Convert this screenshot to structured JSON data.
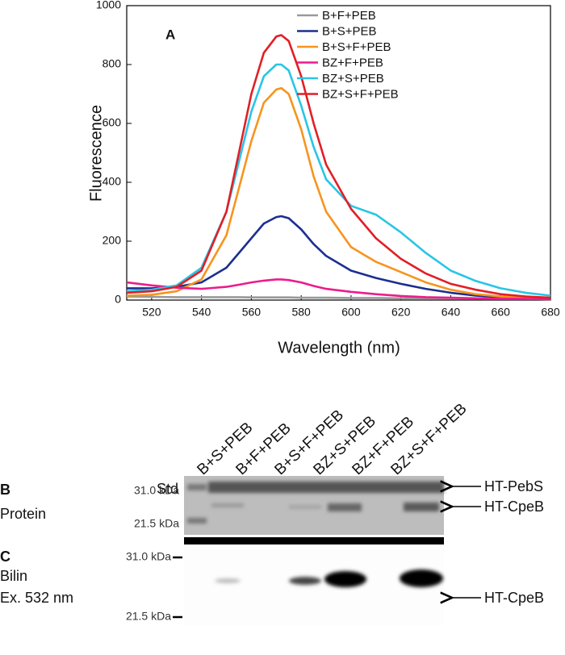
{
  "chart_data": {
    "type": "line",
    "xlabel": "Wavelength (nm)",
    "ylabel": "Fluorescence",
    "annotation": "A",
    "x": [
      510,
      520,
      530,
      540,
      550,
      555,
      560,
      565,
      570,
      572,
      575,
      580,
      585,
      590,
      600,
      610,
      620,
      630,
      640,
      650,
      660,
      670,
      680
    ],
    "series": [
      {
        "name": "B+F+PEB",
        "color": "#999999",
        "values": [
          12,
          11,
          10,
          10,
          10,
          10,
          9,
          9,
          9,
          9,
          9,
          8,
          8,
          8,
          7,
          7,
          6,
          6,
          5,
          5,
          4,
          4,
          3
        ]
      },
      {
        "name": "B+S+PEB",
        "color": "#1b2f8f",
        "values": [
          40,
          40,
          45,
          60,
          110,
          160,
          210,
          260,
          282,
          285,
          278,
          240,
          190,
          150,
          100,
          75,
          55,
          38,
          25,
          15,
          10,
          6,
          4
        ]
      },
      {
        "name": "B+S+F+PEB",
        "color": "#f7941d",
        "values": [
          15,
          18,
          30,
          70,
          220,
          380,
          540,
          670,
          715,
          720,
          700,
          580,
          420,
          300,
          180,
          130,
          95,
          60,
          35,
          20,
          12,
          8,
          5
        ]
      },
      {
        "name": "BZ+F+PEB",
        "color": "#ec1c8c",
        "values": [
          60,
          50,
          42,
          38,
          45,
          52,
          60,
          66,
          70,
          70,
          68,
          60,
          48,
          38,
          28,
          20,
          14,
          10,
          8,
          6,
          5,
          4,
          3
        ]
      },
      {
        "name": "BZ+S+PEB",
        "color": "#29c5e6",
        "values": [
          30,
          35,
          50,
          110,
          300,
          470,
          640,
          760,
          800,
          800,
          780,
          660,
          520,
          410,
          320,
          290,
          230,
          160,
          100,
          65,
          40,
          25,
          15
        ]
      },
      {
        "name": "BZ+S+F+PEB",
        "color": "#e11f26",
        "values": [
          25,
          30,
          45,
          100,
          300,
          500,
          700,
          840,
          895,
          900,
          880,
          760,
          600,
          460,
          310,
          210,
          140,
          90,
          55,
          35,
          20,
          12,
          8
        ]
      }
    ],
    "xlim": [
      510,
      680
    ],
    "xticks": [
      520,
      540,
      560,
      580,
      600,
      620,
      640,
      660,
      680
    ],
    "ylim": [
      0,
      1000
    ],
    "yticks": [
      0,
      200,
      400,
      600,
      800,
      1000
    ],
    "legend": "upper right",
    "grid": false
  },
  "gel": {
    "std": "Std",
    "lanes": [
      {
        "label": "B+S+PEB",
        "color": "#1b2f8f"
      },
      {
        "label": "B+F+PEB",
        "color": "#888888"
      },
      {
        "label": "B+S+F+PEB",
        "color": "#f07b22"
      },
      {
        "label": "BZ+S+PEB",
        "color": "#1aa0e0"
      },
      {
        "label": "BZ+F+PEB",
        "color": "#e01b8c"
      },
      {
        "label": "BZ+S+F+PEB",
        "color": "#e3262b"
      }
    ],
    "protein": {
      "panel": "B",
      "label": "Protein",
      "markers": [
        "31.0 kDa",
        "21.5 kDa"
      ],
      "arrows": [
        "HT-PebS",
        "HT-CpeB"
      ]
    },
    "bilin": {
      "panel": "C",
      "label": [
        "Bilin",
        "Ex. 532 nm"
      ],
      "markers": [
        "31.0 kDa",
        "21.5 kDa"
      ],
      "arrows": [
        "HT-CpeB"
      ]
    }
  }
}
